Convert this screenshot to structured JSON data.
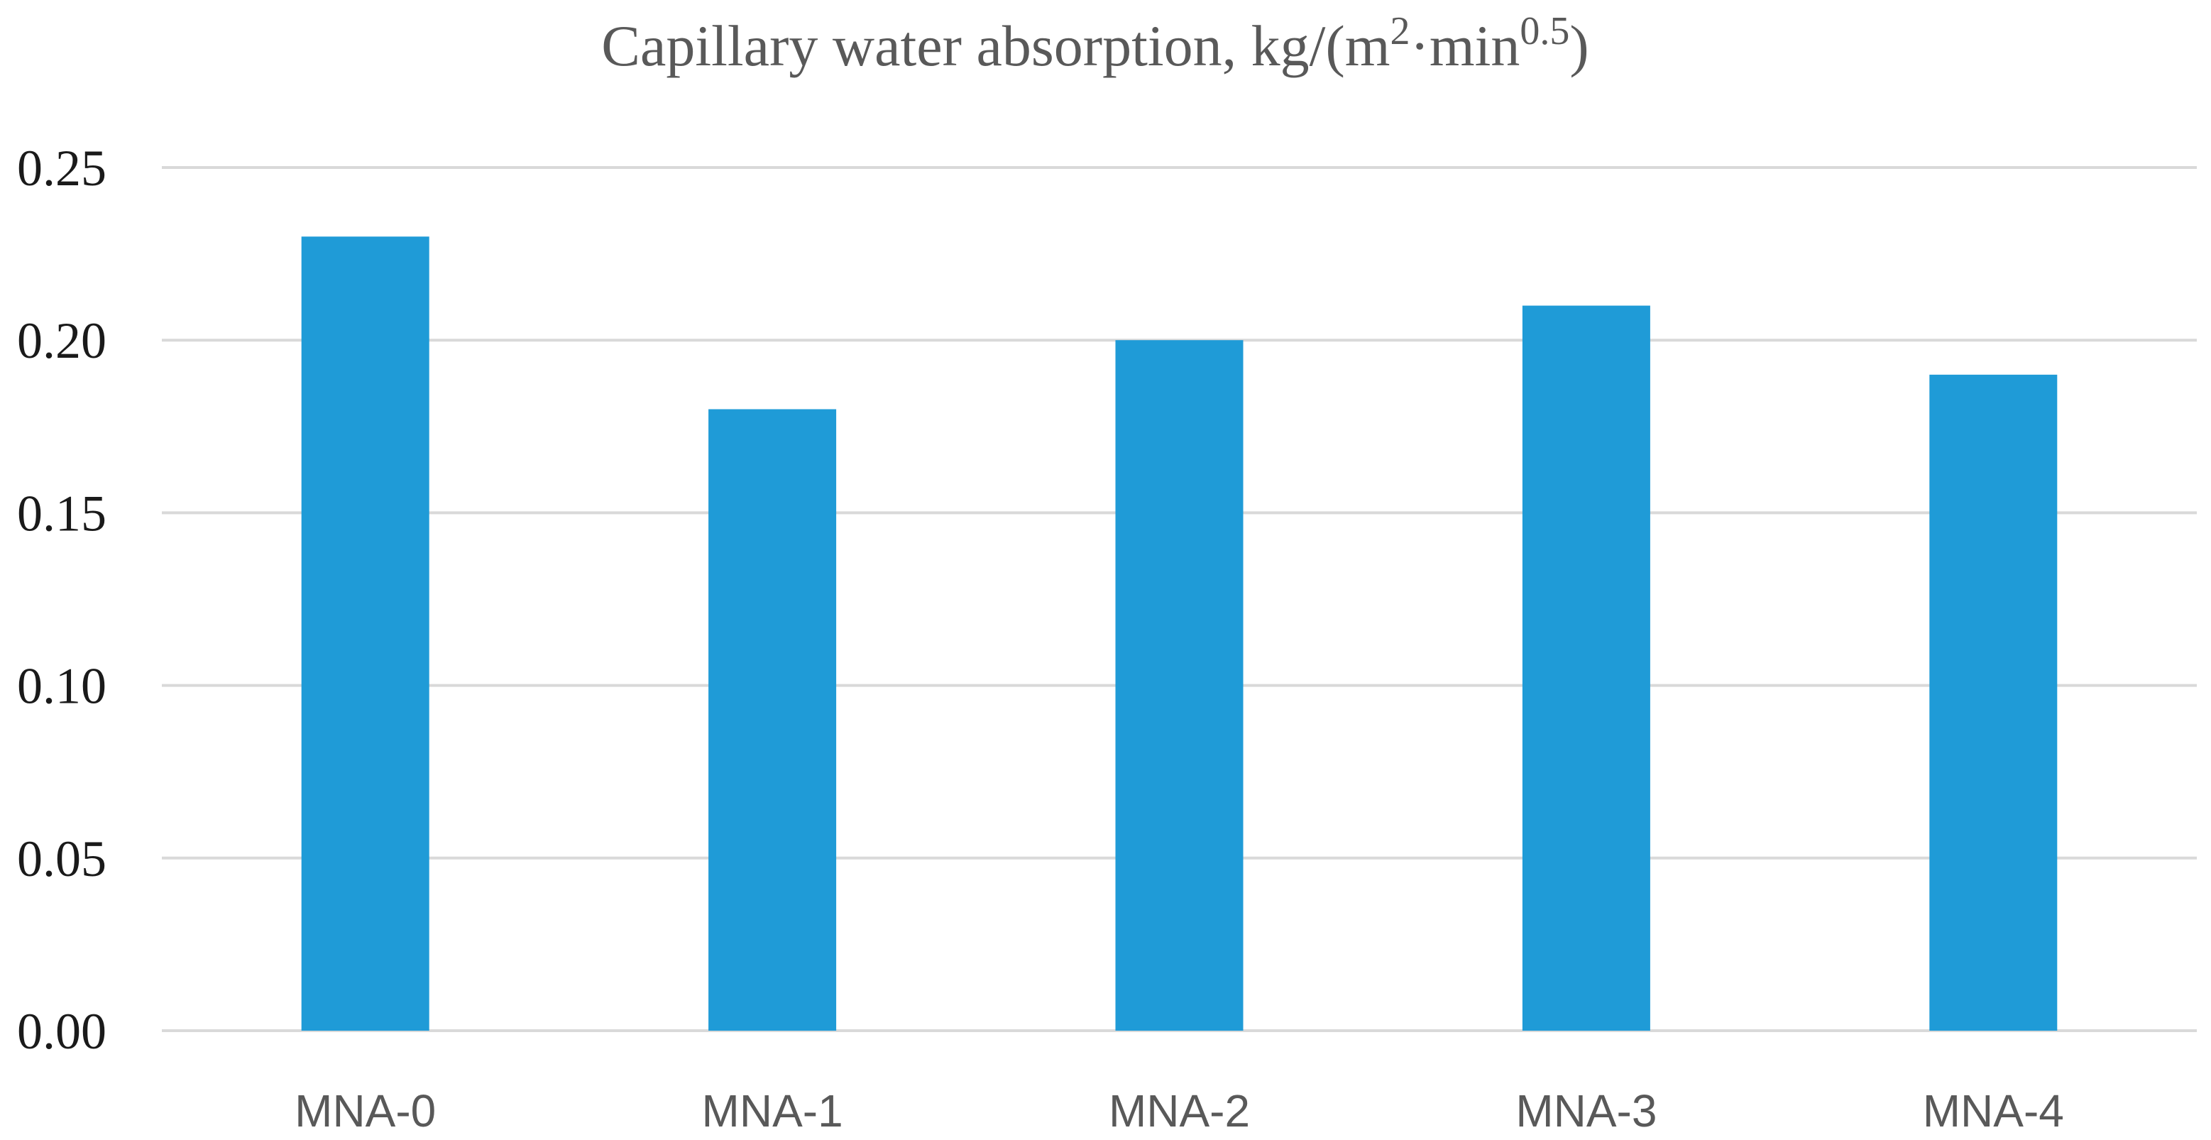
{
  "chart_data": {
    "type": "bar",
    "title": {
      "main": "Capillary water absorption, kg/(m",
      "sup1": "2",
      "mid": "·min",
      "sup2": "0.5",
      "end": ")"
    },
    "categories": [
      "MNA-0",
      "MNA-1",
      "MNA-2",
      "MNA-3",
      "MNA-4"
    ],
    "values": [
      0.23,
      0.18,
      0.2,
      0.21,
      0.19
    ],
    "ylim": [
      0,
      0.25
    ],
    "yticks": [
      "0.00",
      "0.05",
      "0.10",
      "0.15",
      "0.20",
      "0.25"
    ],
    "xlabel": "",
    "ylabel": "",
    "grid": true,
    "bar_color": "#1f9bd7",
    "grid_color": "#d9d9d9"
  }
}
